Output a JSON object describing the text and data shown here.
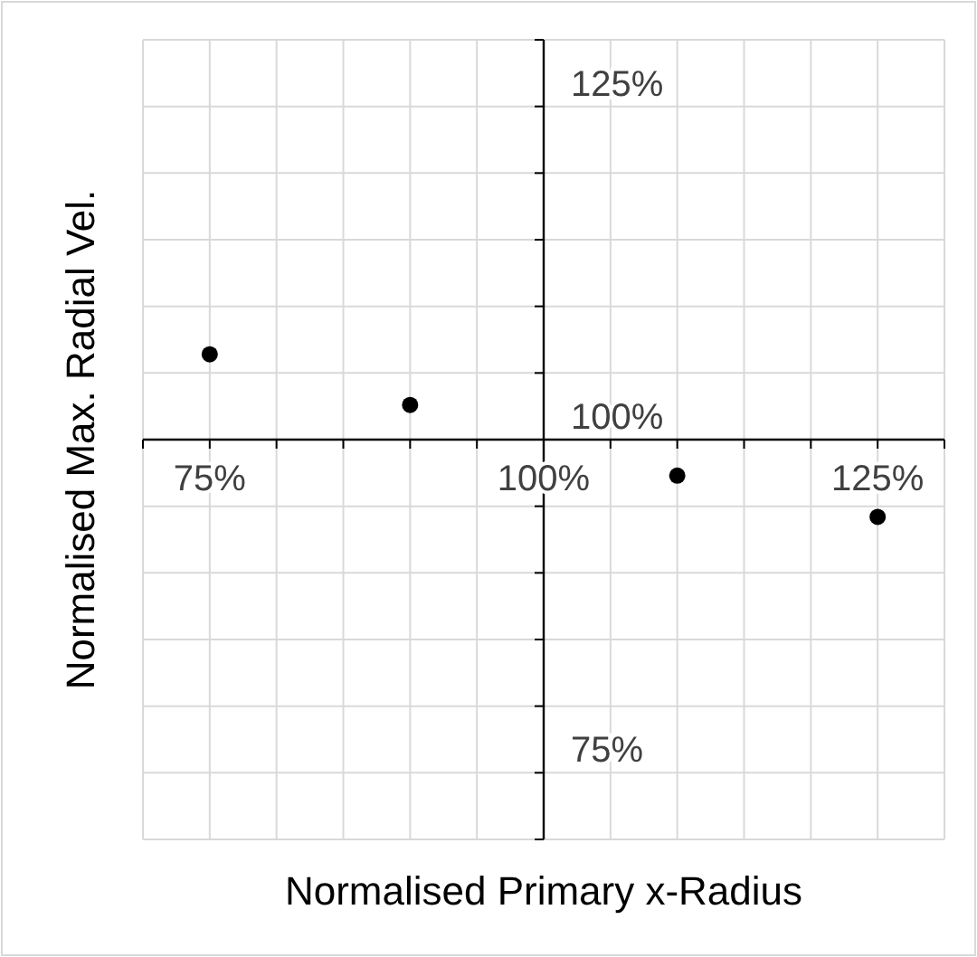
{
  "chart_data": {
    "type": "scatter",
    "xlabel": "Normalised Primary x-Radius",
    "ylabel": "Normalised Max. Radial Vel.",
    "x": [
      75,
      90,
      110,
      125
    ],
    "series": [
      {
        "color": "#000000",
        "values": [
          106.4,
          102.6,
          97.3,
          94.2
        ]
      }
    ],
    "xlim": [
      70,
      130
    ],
    "ylim": [
      70,
      130
    ],
    "xticks": [
      {
        "value": 70,
        "label": null
      },
      {
        "value": 75,
        "label": "75%"
      },
      {
        "value": 80,
        "label": null
      },
      {
        "value": 85,
        "label": null
      },
      {
        "value": 90,
        "label": null
      },
      {
        "value": 95,
        "label": null
      },
      {
        "value": 100,
        "label": "100%"
      },
      {
        "value": 105,
        "label": null
      },
      {
        "value": 110,
        "label": null
      },
      {
        "value": 115,
        "label": null
      },
      {
        "value": 120,
        "label": null
      },
      {
        "value": 125,
        "label": "125%"
      },
      {
        "value": 130,
        "label": null
      }
    ],
    "yticks": [
      {
        "value": 70,
        "label": null
      },
      {
        "value": 75,
        "label": "75%"
      },
      {
        "value": 80,
        "label": null
      },
      {
        "value": 85,
        "label": null
      },
      {
        "value": 90,
        "label": null
      },
      {
        "value": 95,
        "label": null
      },
      {
        "value": 100,
        "label": "100%"
      },
      {
        "value": 105,
        "label": null
      },
      {
        "value": 110,
        "label": null
      },
      {
        "value": 115,
        "label": null
      },
      {
        "value": 120,
        "label": null
      },
      {
        "value": 125,
        "label": "125%"
      },
      {
        "value": 130,
        "label": null
      }
    ],
    "grid": true,
    "marker": "circle"
  }
}
